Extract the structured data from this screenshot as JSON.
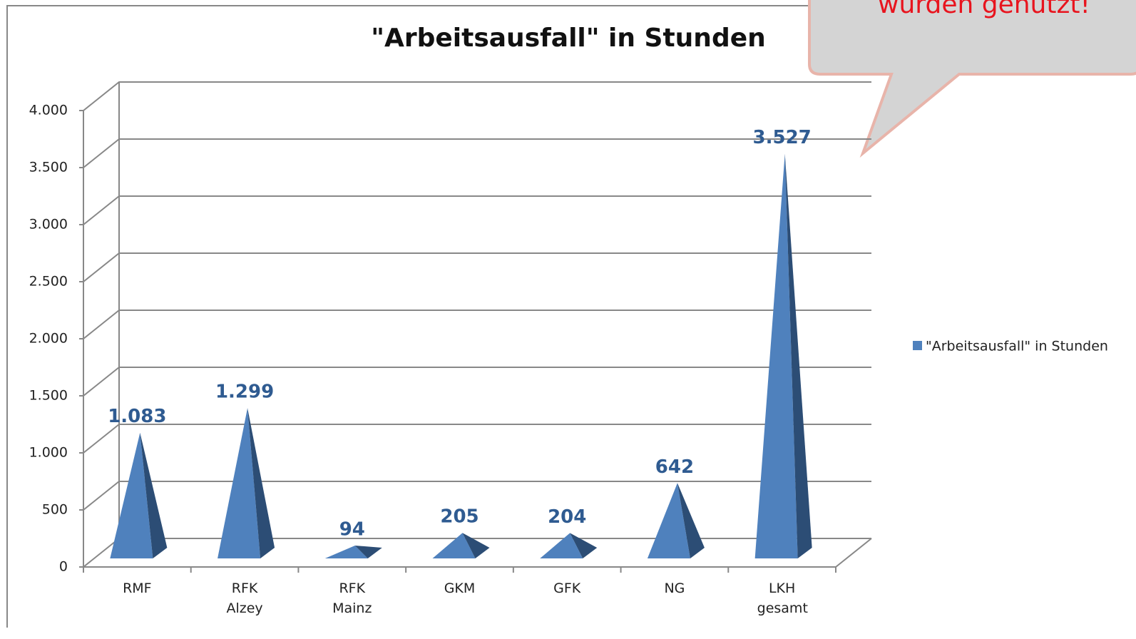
{
  "chart_data": {
    "type": "pyramid",
    "title": "\"Arbeitsausfall\" in Stunden",
    "annotation": "wurden genutzt!",
    "categories": [
      "RMF",
      "RFK Alzey",
      "RFK Mainz",
      "GKM",
      "GFK",
      "NG",
      "LKH gesamt"
    ],
    "series": [
      {
        "name": "\"Arbeitsausfall\" in Stunden",
        "color": "#4f81bd",
        "values": [
          1083,
          1299,
          94,
          205,
          204,
          642,
          3527
        ],
        "value_labels": [
          "1.083",
          "1.299",
          "94",
          "205",
          "204",
          "642",
          "3.527"
        ]
      }
    ],
    "ylim": [
      0,
      4000
    ],
    "yticks": [
      0,
      500,
      {
        "value": 1000,
        "label": "1.000"
      },
      {
        "value": 1500,
        "label": "1.500"
      },
      {
        "value": 2000,
        "label": "2.000"
      },
      {
        "value": 2500,
        "label": "2.500"
      },
      {
        "value": 3000,
        "label": "3.000"
      },
      {
        "value": 3500,
        "label": "3.500"
      },
      {
        "value": 4000,
        "label": "4.000"
      }
    ],
    "grid": true,
    "legend": "right"
  }
}
